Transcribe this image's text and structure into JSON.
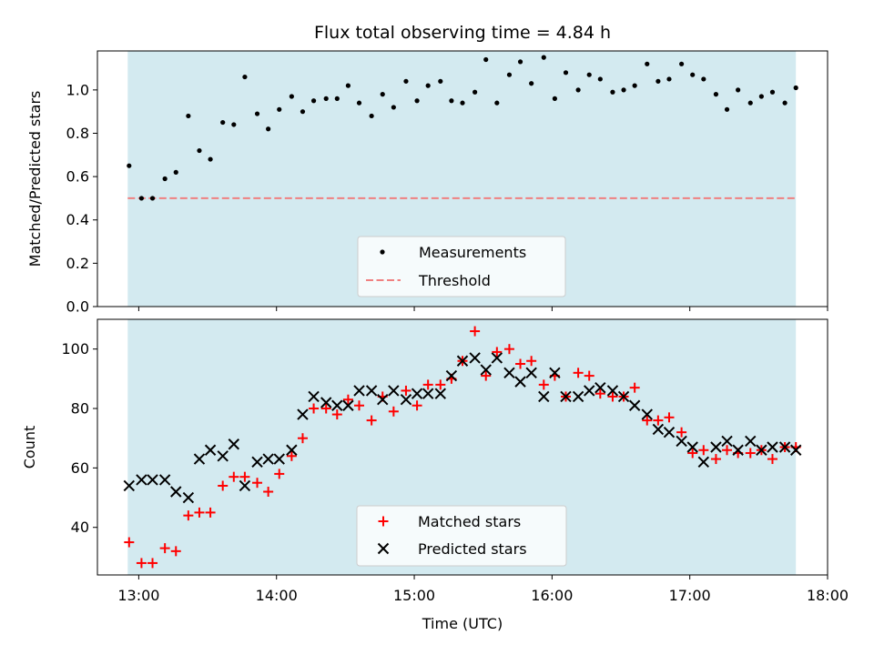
{
  "chart_data": {
    "title": "Flux total observing time = 4.84 h",
    "xlabel": "Time (UTC)",
    "x_unit": "hours UTC",
    "xlim": [
      12.7,
      18.0
    ],
    "x_ticks": [
      13,
      14,
      15,
      16,
      17,
      18
    ],
    "x_tick_labels": [
      "13:00",
      "14:00",
      "15:00",
      "16:00",
      "17:00",
      "18:00"
    ],
    "observing_window": [
      12.92,
      17.77
    ],
    "shade_color": "#d3eaf0",
    "x": [
      12.93,
      13.02,
      13.1,
      13.19,
      13.27,
      13.36,
      13.44,
      13.52,
      13.61,
      13.69,
      13.77,
      13.86,
      13.94,
      14.02,
      14.11,
      14.19,
      14.27,
      14.36,
      14.44,
      14.52,
      14.6,
      14.69,
      14.77,
      14.85,
      14.94,
      15.02,
      15.1,
      15.19,
      15.27,
      15.35,
      15.44,
      15.52,
      15.6,
      15.69,
      15.77,
      15.85,
      15.94,
      16.02,
      16.1,
      16.19,
      16.27,
      16.35,
      16.44,
      16.52,
      16.6,
      16.69,
      16.77,
      16.85,
      16.94,
      17.02,
      17.1,
      17.19,
      17.27,
      17.35,
      17.44,
      17.52,
      17.6,
      17.69,
      17.77
    ],
    "panels": [
      {
        "type": "scatter",
        "ylabel": "Matched/Predicted stars",
        "ylim": [
          0,
          1.18
        ],
        "y_ticks": [
          0.0,
          0.2,
          0.4,
          0.6,
          0.8,
          1.0
        ],
        "y_tick_labels": [
          "0.0",
          "0.2",
          "0.4",
          "0.6",
          "0.8",
          "1.0"
        ],
        "legend_position": "lower-center",
        "series": [
          {
            "name": "Measurements",
            "marker": "dot",
            "color": "#000000",
            "values": [
              0.65,
              0.5,
              0.5,
              0.59,
              0.62,
              0.88,
              0.72,
              0.68,
              0.85,
              0.84,
              1.06,
              0.89,
              0.82,
              0.91,
              0.97,
              0.9,
              0.95,
              0.96,
              0.96,
              1.02,
              0.94,
              0.88,
              0.98,
              0.92,
              1.04,
              0.95,
              1.02,
              1.04,
              0.95,
              0.94,
              0.99,
              1.14,
              0.94,
              1.07,
              1.13,
              1.03,
              1.15,
              0.96,
              1.08,
              1.0,
              1.07,
              1.05,
              0.99,
              1.0,
              1.02,
              1.12,
              1.04,
              1.05,
              1.12,
              1.07,
              1.05,
              0.98,
              0.91,
              1.0,
              0.94,
              0.97,
              0.99,
              0.94,
              1.01
            ]
          }
        ],
        "threshold": {
          "name": "Threshold",
          "value": 0.5,
          "color": "#f08080"
        }
      },
      {
        "type": "scatter",
        "ylabel": "Count",
        "ylim": [
          24,
          110
        ],
        "y_ticks": [
          40,
          60,
          80,
          100
        ],
        "y_tick_labels": [
          "40",
          "60",
          "80",
          "100"
        ],
        "legend_position": "lower-center",
        "series": [
          {
            "name": "Matched stars",
            "marker": "plus",
            "color": "#ff0000",
            "values": [
              35,
              28,
              28,
              33,
              32,
              44,
              45,
              45,
              54,
              57,
              57,
              55,
              52,
              58,
              64,
              70,
              80,
              80,
              78,
              83,
              81,
              76,
              84,
              79,
              86,
              81,
              88,
              88,
              90,
              96,
              106,
              91,
              99,
              100,
              95,
              96,
              88,
              91,
              84,
              92,
              91,
              85,
              84,
              84,
              87,
              76,
              76,
              77,
              72,
              65,
              66,
              63,
              66,
              65,
              65,
              66,
              63,
              67,
              67
            ]
          },
          {
            "name": "Predicted stars",
            "marker": "x",
            "color": "#000000",
            "values": [
              54,
              56,
              56,
              56,
              52,
              50,
              63,
              66,
              64,
              68,
              54,
              62,
              63,
              63,
              66,
              78,
              84,
              82,
              81,
              81,
              86,
              86,
              83,
              86,
              83,
              85,
              85,
              85,
              91,
              96,
              97,
              93,
              97,
              92,
              89,
              92,
              84,
              92,
              84,
              84,
              86,
              87,
              86,
              84,
              81,
              78,
              73,
              72,
              69,
              67,
              62,
              67,
              69,
              66,
              69,
              66,
              67,
              67,
              66
            ]
          }
        ]
      }
    ]
  }
}
